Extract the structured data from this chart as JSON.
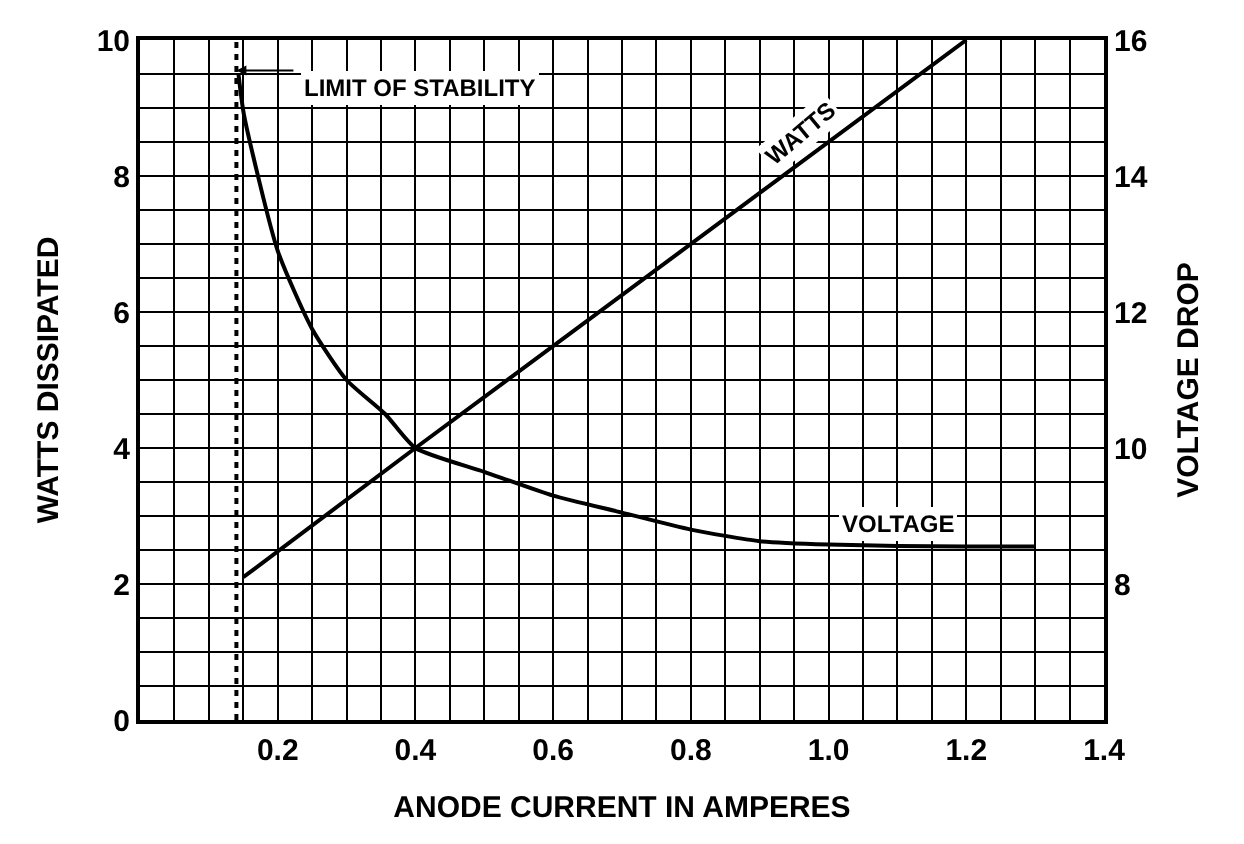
{
  "chart_data": {
    "type": "line",
    "xlabel": "ANODE CURRENT IN AMPERES",
    "ylabel": "WATTS DISSIPATED",
    "y2label": "VOLTAGE DROP",
    "xlim": [
      0,
      1.4
    ],
    "xticks": [
      {
        "value": 0.2,
        "label": "0.2"
      },
      {
        "value": 0.4,
        "label": "0.4"
      },
      {
        "value": 0.6,
        "label": "0.6"
      },
      {
        "value": 0.8,
        "label": "0.8"
      },
      {
        "value": 1.0,
        "label": "1.0"
      },
      {
        "value": 1.2,
        "label": "1.2"
      },
      {
        "value": 1.4,
        "label": "1.4"
      }
    ],
    "ylim": [
      0,
      10
    ],
    "yticks": [
      0,
      2,
      4,
      6,
      8,
      10
    ],
    "y2lim": [
      6,
      16
    ],
    "y2ticks": [
      8,
      10,
      12,
      14,
      16
    ],
    "grid": true,
    "legend": false,
    "marker": "none",
    "line_style": "solid",
    "series": [
      {
        "name": "WATTS",
        "color": "#000000",
        "x": [
          0.15,
          0.4,
          1.2
        ],
        "values": [
          2.1,
          4,
          10
        ]
      },
      {
        "name": "VOLTAGE",
        "color": "#000000",
        "axis": "y2",
        "x": [
          0.143,
          0.151,
          0.2,
          0.25,
          0.3,
          0.356,
          0.4,
          0.5,
          0.6,
          0.7,
          0.8,
          0.9,
          1.0,
          1.1,
          1.2,
          1.3
        ],
        "values": [
          15.5,
          14.9,
          12.9,
          11.75,
          11.0,
          10.5,
          10,
          9.65,
          9.3,
          9.05,
          8.8,
          8.63,
          8.58,
          8.56,
          8.55,
          8.55
        ]
      }
    ],
    "ref_lines": [
      {
        "axis": "x",
        "value": 0.14,
        "label": "LIMIT OF STABILITY",
        "line_style": "dotted"
      }
    ]
  }
}
